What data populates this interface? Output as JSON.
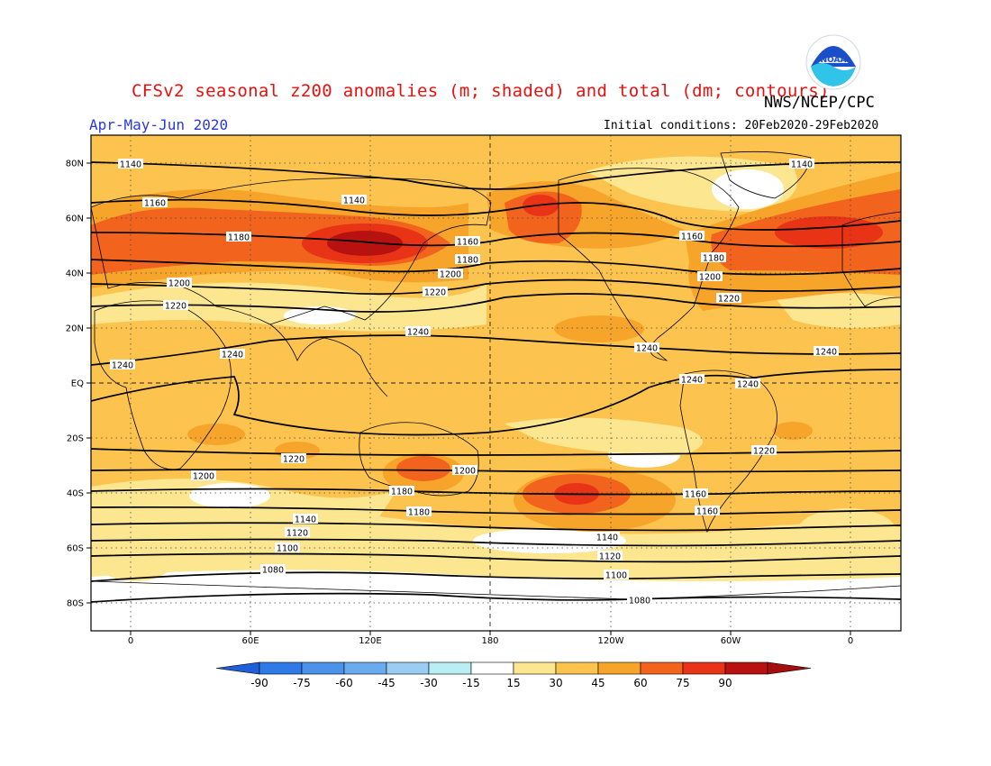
{
  "header": {
    "title": "CFSv2 seasonal z200 anomalies (m; shaded) and total (dm; contours)",
    "agency": "NWS/NCEP/CPC",
    "period": "Apr-May-Jun 2020",
    "initial_conditions": "Initial conditions: 20Feb2020-29Feb2020",
    "logo_text": "NOAA",
    "logo_icon": "noaa-logo-icon"
  },
  "map": {
    "lat_ticks": [
      "80N",
      "60N",
      "40N",
      "20N",
      "EQ",
      "20S",
      "40S",
      "60S",
      "80S"
    ],
    "lon_ticks": [
      "0",
      "60E",
      "120E",
      "180",
      "120W",
      "60W",
      "0"
    ],
    "contour_levels_dm": [
      1080,
      1100,
      1120,
      1140,
      1160,
      1180,
      1200,
      1220,
      1240
    ],
    "contour_labels": [
      "1140",
      "1160",
      "1140",
      "1180",
      "1160",
      "1180",
      "1200",
      "1200",
      "1220",
      "1220",
      "1240",
      "1240",
      "1240",
      "1240",
      "1240",
      "1240",
      "1140",
      "1160",
      "1180",
      "1200",
      "1220",
      "1240",
      "1220",
      "1220",
      "1200",
      "1200",
      "1180",
      "1160",
      "1180",
      "1160",
      "1140",
      "1140",
      "1120",
      "1120",
      "1100",
      "1100",
      "1080",
      "1080"
    ],
    "colors": {
      "ocean_land_line": "#000000",
      "grid": "#444444"
    }
  },
  "colorbar": {
    "labels": [
      "-90",
      "-75",
      "-60",
      "-45",
      "-30",
      "-15",
      "15",
      "30",
      "45",
      "60",
      "75",
      "90"
    ],
    "colors": [
      "#1f5fd8",
      "#2e7ae6",
      "#4b92ea",
      "#6aaaf0",
      "#9bcdf2",
      "#b9eef4",
      "#ffffff",
      "#fde690",
      "#fcc44e",
      "#f7a52a",
      "#f2631e",
      "#e83317",
      "#b81210",
      "#a60d0d"
    ]
  }
}
